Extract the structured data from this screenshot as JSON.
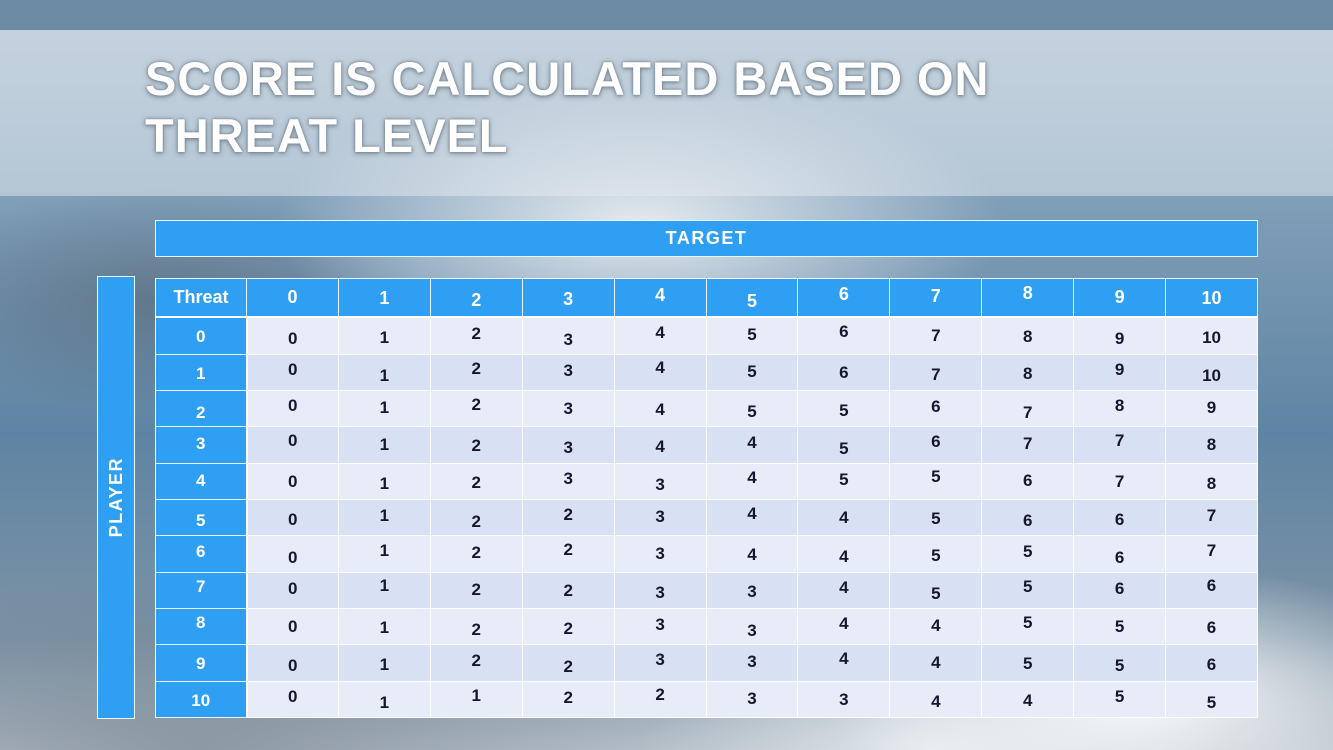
{
  "slide": {
    "title_line1": "SCORE IS CALCULATED BASED ON",
    "title_line2": "THREAT LEVEL"
  },
  "table": {
    "target_label": "TARGET",
    "player_label": "PLAYER",
    "corner_label": "Threat",
    "column_headers": [
      "0",
      "1",
      "2",
      "3",
      "4",
      "5",
      "6",
      "7",
      "8",
      "9",
      "10"
    ],
    "rows": [
      {
        "threat": "0",
        "values": [
          "0",
          "1",
          "2",
          "3",
          "4",
          "5",
          "6",
          "7",
          "8",
          "9",
          "10"
        ]
      },
      {
        "threat": "1",
        "values": [
          "0",
          "1",
          "2",
          "3",
          "4",
          "5",
          "6",
          "7",
          "8",
          "9",
          "10"
        ]
      },
      {
        "threat": "2",
        "values": [
          "0",
          "1",
          "2",
          "3",
          "4",
          "5",
          "5",
          "6",
          "7",
          "8",
          "9"
        ]
      },
      {
        "threat": "3",
        "values": [
          "0",
          "1",
          "2",
          "3",
          "4",
          "4",
          "5",
          "6",
          "7",
          "7",
          "8"
        ]
      },
      {
        "threat": "4",
        "values": [
          "0",
          "1",
          "2",
          "3",
          "3",
          "4",
          "5",
          "5",
          "6",
          "7",
          "8"
        ]
      },
      {
        "threat": "5",
        "values": [
          "0",
          "1",
          "2",
          "2",
          "3",
          "4",
          "4",
          "5",
          "6",
          "6",
          "7"
        ]
      },
      {
        "threat": "6",
        "values": [
          "0",
          "1",
          "2",
          "2",
          "3",
          "4",
          "4",
          "5",
          "5",
          "6",
          "7"
        ]
      },
      {
        "threat": "7",
        "values": [
          "0",
          "1",
          "2",
          "2",
          "3",
          "3",
          "4",
          "5",
          "5",
          "6",
          "6"
        ]
      },
      {
        "threat": "8",
        "values": [
          "0",
          "1",
          "2",
          "2",
          "3",
          "3",
          "4",
          "4",
          "5",
          "5",
          "6"
        ]
      },
      {
        "threat": "9",
        "values": [
          "0",
          "1",
          "2",
          "2",
          "3",
          "3",
          "4",
          "4",
          "5",
          "5",
          "6"
        ]
      },
      {
        "threat": "10",
        "values": [
          "0",
          "1",
          "1",
          "2",
          "2",
          "3",
          "3",
          "4",
          "4",
          "5",
          "5"
        ]
      }
    ]
  },
  "colors": {
    "accent_blue": "#2f9ff4",
    "top_bar": "#6d8ba3",
    "row_band_light": "#e7ecf8",
    "row_band_dark": "#d8e1f3",
    "title_text": "#ffffff"
  }
}
